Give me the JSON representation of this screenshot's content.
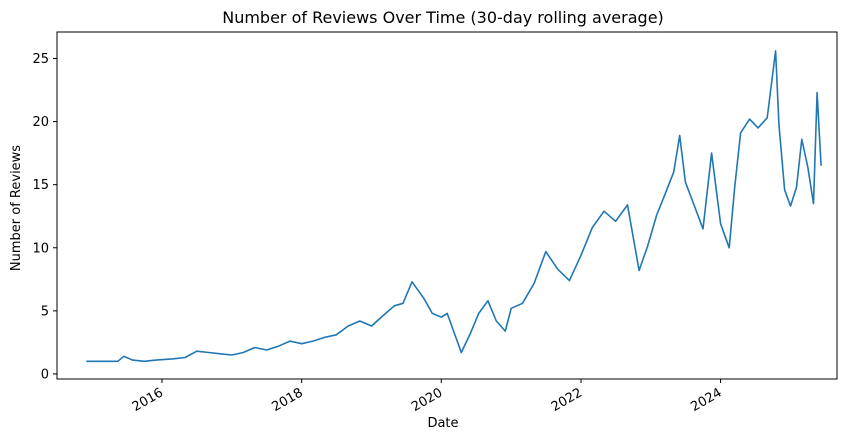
{
  "chart_data": {
    "type": "line",
    "title": "Number of Reviews Over Time (30-day rolling average)",
    "xlabel": "Date",
    "ylabel": "Number of Reviews",
    "xlim": [
      "2014-07-01",
      "2025-09-01"
    ],
    "ylim": [
      -0.4,
      27.1
    ],
    "xticks": [
      {
        "label": "2016",
        "date": "2016-01-01"
      },
      {
        "label": "2018",
        "date": "2018-01-01"
      },
      {
        "label": "2020",
        "date": "2020-01-01"
      },
      {
        "label": "2022",
        "date": "2022-01-01"
      },
      {
        "label": "2024",
        "date": "2024-01-01"
      }
    ],
    "yticks": [
      0,
      5,
      10,
      15,
      20,
      25
    ],
    "grid": false,
    "legend": "none",
    "line_color": "#1f77b4",
    "series": [
      {
        "x": [
          "2014-12-01",
          "2015-03-01",
          "2015-05-15",
          "2015-06-15",
          "2015-08-01",
          "2015-10-01",
          "2015-12-01",
          "2016-03-01",
          "2016-05-01",
          "2016-07-01",
          "2016-09-01",
          "2016-11-01",
          "2017-01-01",
          "2017-03-01",
          "2017-05-01",
          "2017-07-01",
          "2017-09-01",
          "2017-11-01",
          "2018-01-01",
          "2018-03-01",
          "2018-05-01",
          "2018-07-01",
          "2018-09-01",
          "2018-11-01",
          "2019-01-01",
          "2019-03-01",
          "2019-05-01",
          "2019-06-15",
          "2019-08-01",
          "2019-10-01",
          "2019-11-15",
          "2020-01-01",
          "2020-02-01",
          "2020-03-15",
          "2020-04-15",
          "2020-06-01",
          "2020-07-15",
          "2020-09-01",
          "2020-10-15",
          "2020-12-01",
          "2021-01-01",
          "2021-03-01",
          "2021-05-01",
          "2021-07-01",
          "2021-09-01",
          "2021-11-01",
          "2022-01-01",
          "2022-03-01",
          "2022-05-01",
          "2022-07-01",
          "2022-09-01",
          "2022-11-01",
          "2022-12-15",
          "2023-02-01",
          "2023-03-15",
          "2023-05-01",
          "2023-06-01",
          "2023-07-01",
          "2023-08-15",
          "2023-10-01",
          "2023-11-15",
          "2024-01-01",
          "2024-02-15",
          "2024-03-15",
          "2024-04-15",
          "2024-06-01",
          "2024-07-15",
          "2024-09-01",
          "2024-10-15",
          "2024-11-01",
          "2024-12-01",
          "2025-01-01",
          "2025-02-01",
          "2025-03-01",
          "2025-04-01",
          "2025-05-01",
          "2025-05-20",
          "2025-06-10"
        ],
        "values": [
          1.0,
          1.0,
          1.0,
          1.4,
          1.1,
          1.0,
          1.1,
          1.2,
          1.3,
          1.8,
          1.7,
          1.6,
          1.5,
          1.7,
          2.1,
          1.9,
          2.2,
          2.6,
          2.4,
          2.6,
          2.9,
          3.1,
          3.8,
          4.2,
          3.8,
          4.6,
          5.4,
          5.6,
          7.3,
          6.0,
          4.8,
          4.5,
          4.8,
          3.0,
          1.7,
          3.2,
          4.8,
          5.8,
          4.2,
          3.4,
          5.2,
          5.6,
          7.2,
          9.7,
          8.3,
          7.4,
          9.4,
          11.6,
          12.9,
          12.1,
          13.4,
          8.2,
          10.1,
          12.6,
          14.2,
          16.0,
          18.9,
          15.2,
          13.4,
          11.5,
          17.5,
          11.9,
          10.0,
          14.8,
          19.1,
          20.2,
          19.5,
          20.3,
          25.6,
          19.8,
          14.6,
          13.3,
          14.8,
          18.6,
          16.4,
          13.5,
          22.3,
          16.5
        ]
      }
    ]
  }
}
